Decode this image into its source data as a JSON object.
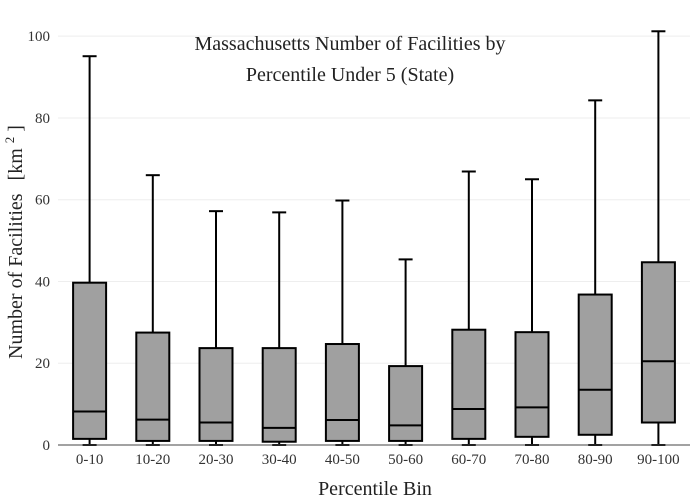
{
  "chart_data": {
    "type": "boxplot",
    "title_lines": [
      "Massachusetts Number of Facilities by",
      "Percentile Under 5 (State)"
    ],
    "xlabel": "Percentile Bin",
    "ylabel_main": "Number of Facilities",
    "ylabel_unit_base": "[km",
    "ylabel_unit_sup": "2",
    "ylabel_unit_close": "]",
    "ylim": [
      0,
      102
    ],
    "yticks": [
      0,
      20,
      40,
      60,
      80,
      100
    ],
    "grid": true,
    "legend": "none",
    "colors": {
      "box_fill": "#a0a0a0",
      "box_stroke": "#000000",
      "grid": "#eeeeee",
      "axis": "#444444"
    },
    "categories": [
      "0-10",
      "10-20",
      "20-30",
      "30-40",
      "40-50",
      "50-60",
      "60-70",
      "70-80",
      "80-90",
      "90-100"
    ],
    "boxes": [
      {
        "min": 0,
        "q1": 1.5,
        "median": 8.2,
        "q3": 39.7,
        "max": 95.1
      },
      {
        "min": 0,
        "q1": 1.0,
        "median": 6.2,
        "q3": 27.5,
        "max": 66.0
      },
      {
        "min": 0,
        "q1": 1.0,
        "median": 5.5,
        "q3": 23.7,
        "max": 57.2
      },
      {
        "min": 0,
        "q1": 0.8,
        "median": 4.2,
        "q3": 23.7,
        "max": 56.9
      },
      {
        "min": 0,
        "q1": 1.0,
        "median": 6.1,
        "q3": 24.7,
        "max": 59.8
      },
      {
        "min": 0,
        "q1": 1.0,
        "median": 4.8,
        "q3": 19.3,
        "max": 45.4
      },
      {
        "min": 0,
        "q1": 1.5,
        "median": 8.8,
        "q3": 28.2,
        "max": 66.9
      },
      {
        "min": 0,
        "q1": 2.0,
        "median": 9.2,
        "q3": 27.6,
        "max": 65.0
      },
      {
        "min": 0,
        "q1": 2.5,
        "median": 13.5,
        "q3": 36.8,
        "max": 84.3
      },
      {
        "min": 0,
        "q1": 5.5,
        "median": 20.5,
        "q3": 44.7,
        "max": 101.2
      }
    ]
  }
}
